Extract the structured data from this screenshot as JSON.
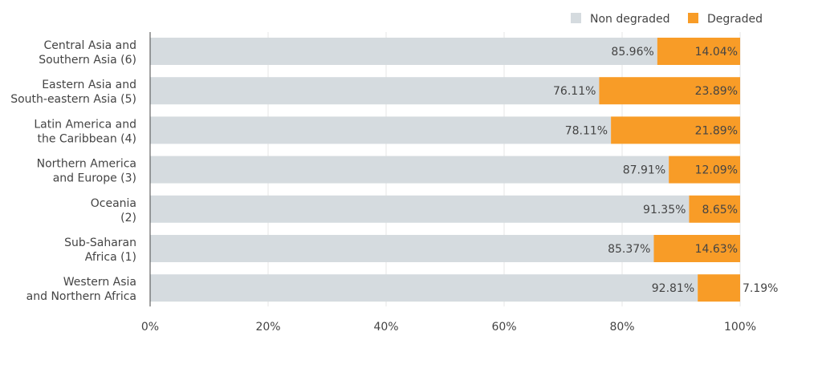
{
  "chart_data": {
    "type": "bar",
    "orientation": "horizontal",
    "stacked": true,
    "categories": [
      [
        "Central Asia and",
        "Southern Asia (6)"
      ],
      [
        "Eastern Asia and",
        "South-eastern Asia (5)"
      ],
      [
        "Latin America and",
        "the Caribbean (4)"
      ],
      [
        "Northern America",
        "and Europe (3)"
      ],
      [
        "Oceania",
        "(2)"
      ],
      [
        "Sub-Saharan",
        "Africa (1)"
      ],
      [
        "Western Asia",
        "and Northern Africa"
      ]
    ],
    "series": [
      {
        "name": "Non degraded",
        "color": "#d5dbdf",
        "values": [
          85.96,
          76.11,
          78.11,
          87.91,
          91.35,
          85.37,
          92.81
        ],
        "labels": [
          "85.96%",
          "76.11%",
          "78.11%",
          "87.91%",
          "91.35%",
          "85.37%",
          "92.81%"
        ]
      },
      {
        "name": "Degraded",
        "color": "#f89c27",
        "values": [
          14.04,
          23.89,
          21.89,
          12.09,
          8.65,
          14.63,
          7.19
        ],
        "labels": [
          "14.04%",
          "23.89%",
          "21.89%",
          "12.09%",
          "8.65%",
          "14.63%",
          "7.19%"
        ]
      }
    ],
    "xlim": [
      0,
      100
    ],
    "xticks": [
      0,
      20,
      40,
      60,
      80,
      100
    ],
    "xtick_labels": [
      "0%",
      "20%",
      "40%",
      "60%",
      "80%",
      "100%"
    ],
    "grid": true,
    "legend_position": "top-right",
    "title": "",
    "xlabel": "",
    "ylabel": ""
  }
}
